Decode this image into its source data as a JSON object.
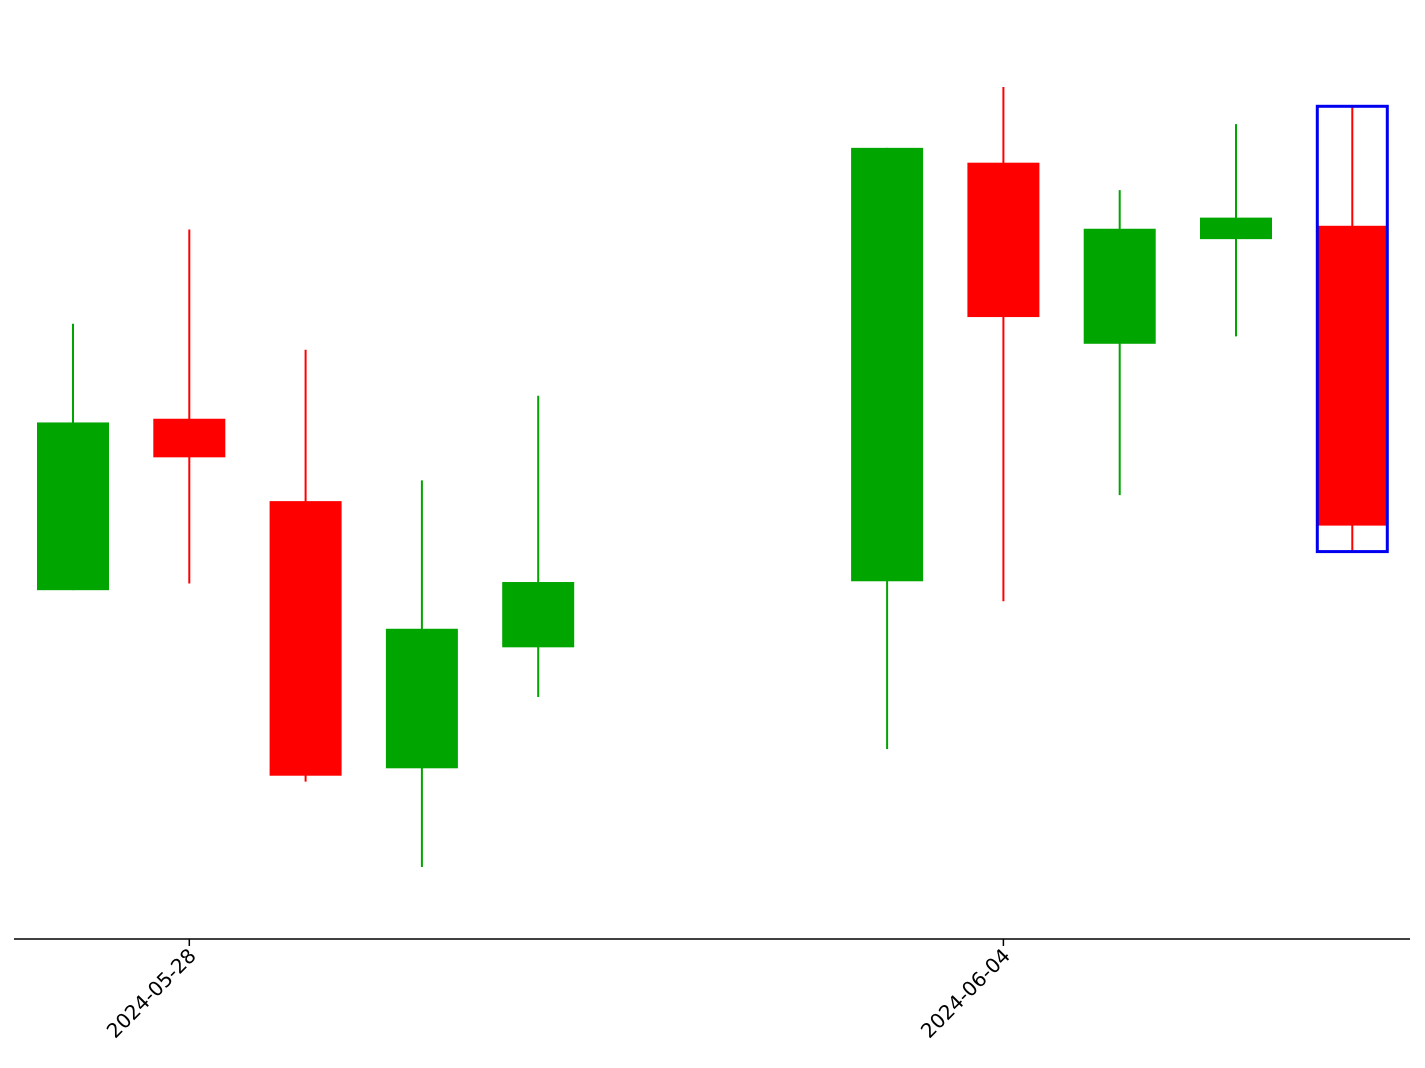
{
  "chart_data": {
    "type": "candlestick",
    "title": "",
    "xlabel": "",
    "ylabel": "",
    "x_tick_labels": [
      "2024-05-28",
      "2024-06-04"
    ],
    "grid": false,
    "y_axis_visible": false,
    "colors": {
      "up": "#00a500",
      "down": "#ff0000",
      "highlight": "#0000ee",
      "axis": "#000000"
    },
    "candles": [
      {
        "date": "2024-05-27",
        "open": 371.4,
        "high": 407.3,
        "low": 371.4,
        "close": 394.0
      },
      {
        "date": "2024-05-28",
        "open": 394.5,
        "high": 420.0,
        "low": 372.3,
        "close": 389.3
      },
      {
        "date": "2024-05-29",
        "open": 383.4,
        "high": 403.8,
        "low": 345.6,
        "close": 346.4
      },
      {
        "date": "2024-05-30",
        "open": 347.4,
        "high": 386.2,
        "low": 334.1,
        "close": 366.2
      },
      {
        "date": "2024-05-31",
        "open": 363.7,
        "high": 397.6,
        "low": 357.0,
        "close": 372.5
      },
      {
        "date": "2024-06-03",
        "open": 372.6,
        "high": 431.0,
        "low": 350.0,
        "close": 431.0
      },
      {
        "date": "2024-06-04",
        "open": 429.0,
        "high": 439.2,
        "low": 369.9,
        "close": 408.2
      },
      {
        "date": "2024-06-05",
        "open": 404.6,
        "high": 425.3,
        "low": 384.2,
        "close": 420.1
      },
      {
        "date": "2024-06-06",
        "open": 418.7,
        "high": 434.2,
        "low": 405.6,
        "close": 421.6
      },
      {
        "date": "2024-06-07",
        "open": 420.5,
        "high": 436.6,
        "low": 376.6,
        "close": 380.1
      }
    ],
    "highlighted_candle": "2024-06-07"
  }
}
